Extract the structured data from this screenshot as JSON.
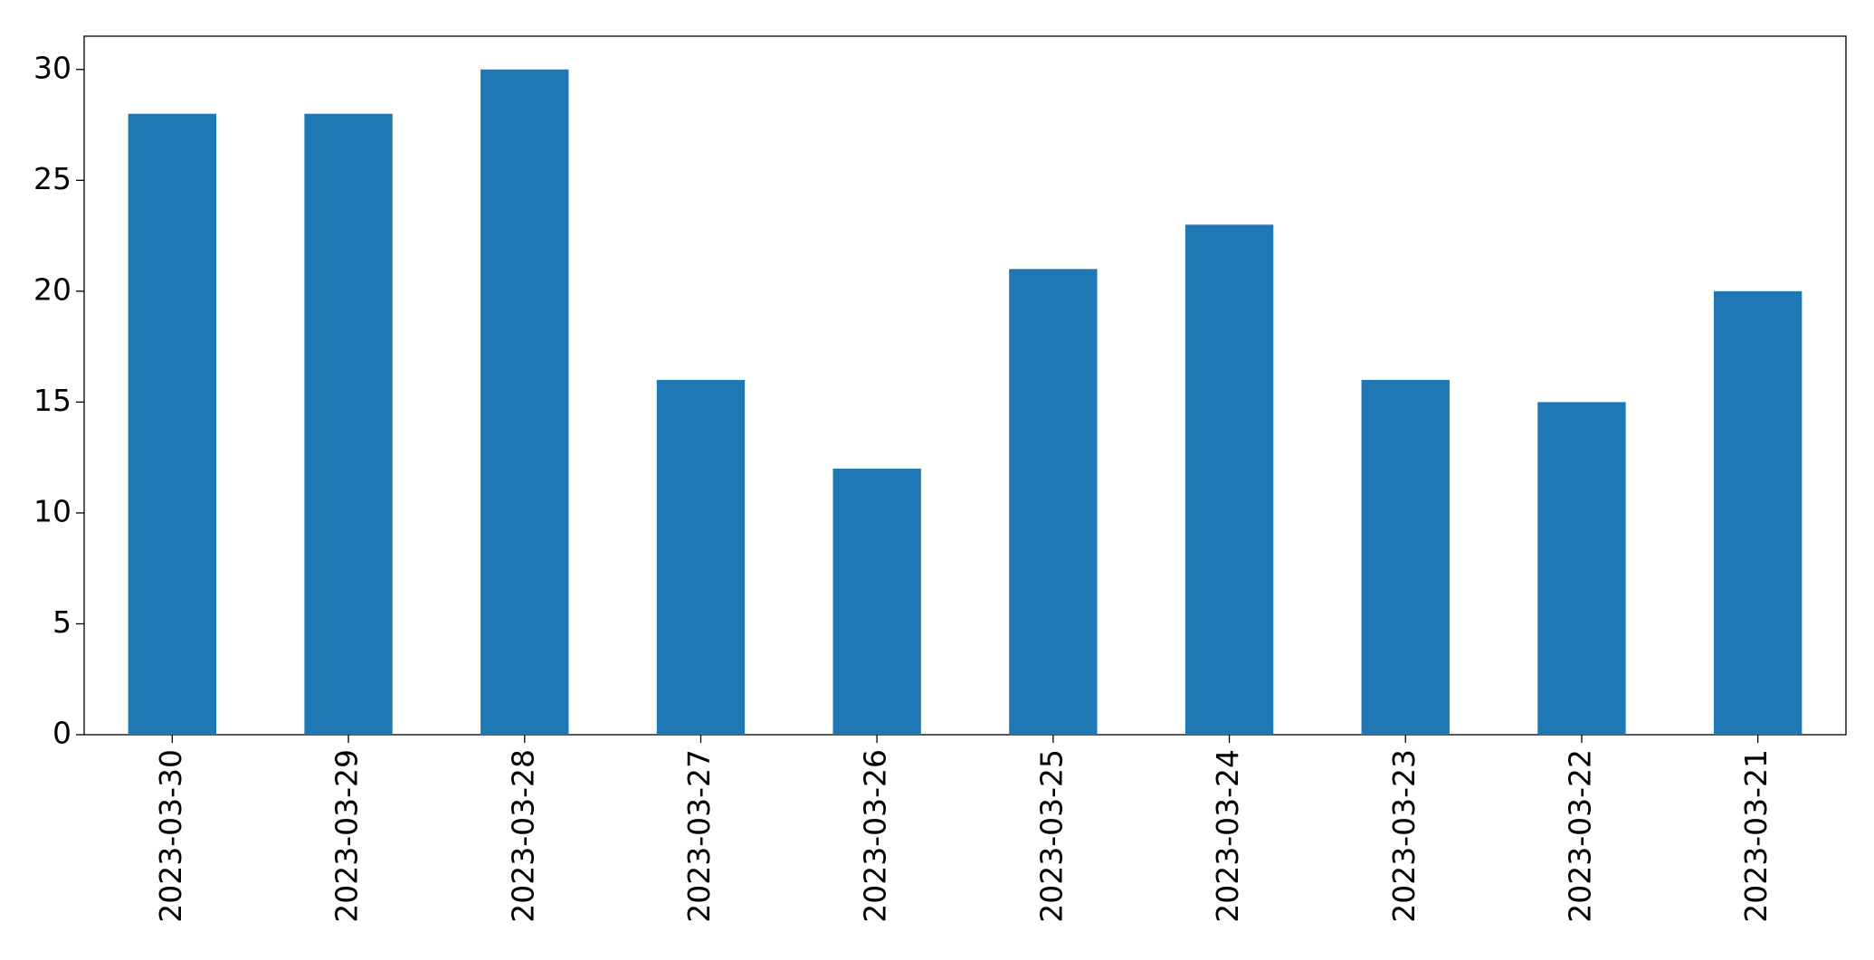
{
  "chart_data": {
    "type": "bar",
    "categories": [
      "2023-03-30",
      "2023-03-29",
      "2023-03-28",
      "2023-03-27",
      "2023-03-26",
      "2023-03-25",
      "2023-03-24",
      "2023-03-23",
      "2023-03-22",
      "2023-03-21"
    ],
    "values": [
      28,
      28,
      30,
      16,
      12,
      21,
      23,
      16,
      15,
      20
    ],
    "color": "#1f77b4",
    "ylim": [
      0,
      31.5
    ],
    "yticks": [
      0,
      5,
      10,
      15,
      20,
      25,
      30
    ],
    "grid": false
  }
}
